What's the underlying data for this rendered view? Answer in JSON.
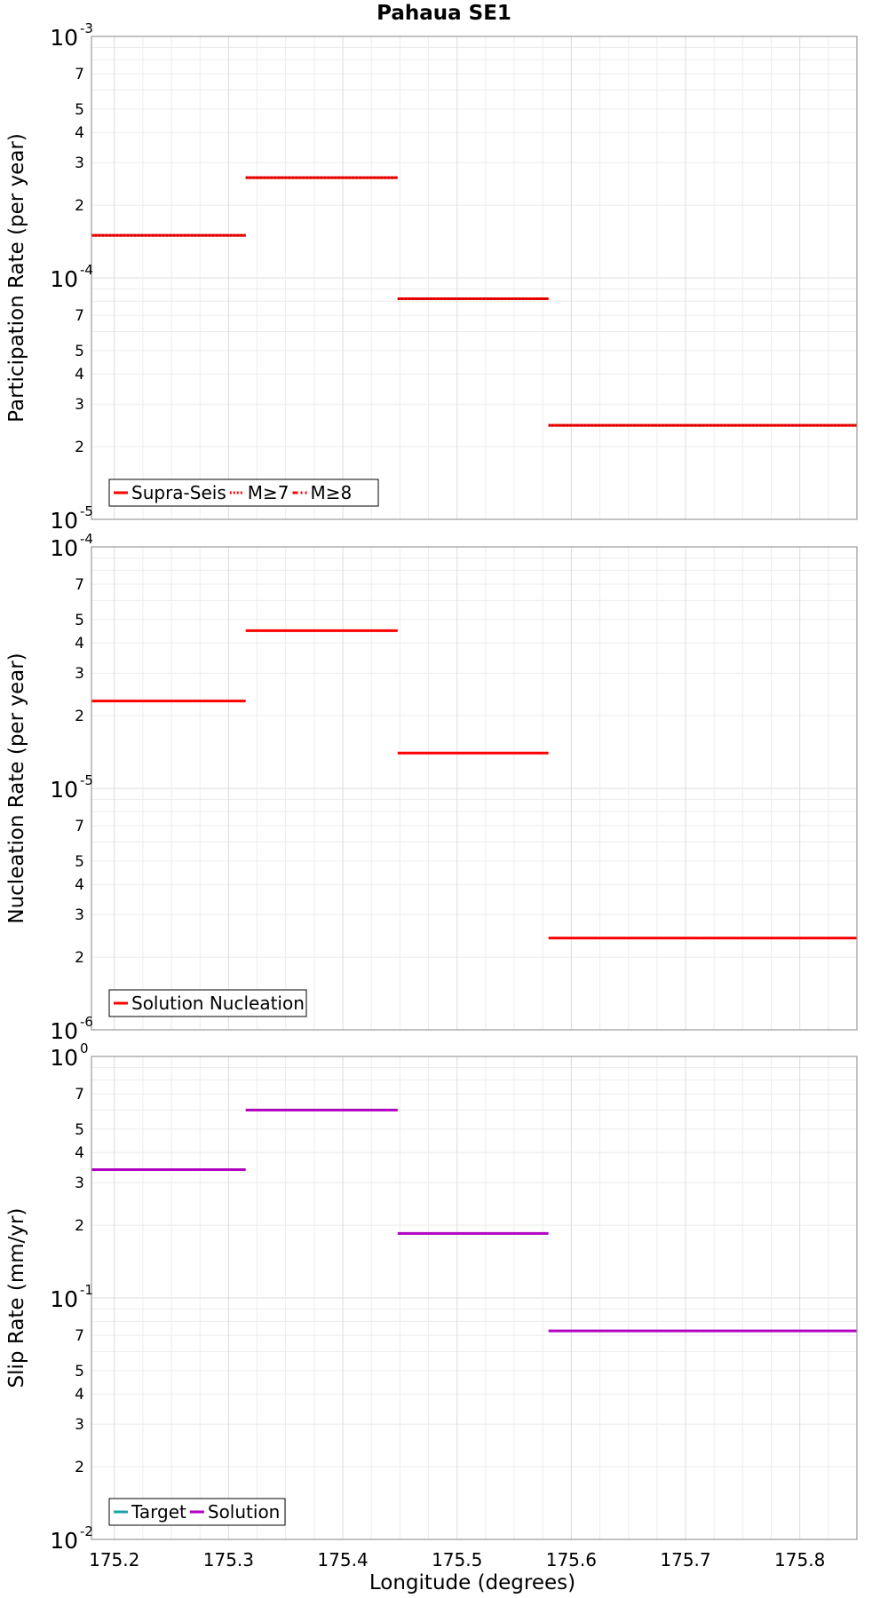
{
  "chart_data": [
    {
      "type": "line",
      "title": "Pahaua SE1",
      "xlabel": "",
      "ylabel": "Participation Rate (per year)",
      "xlim": [
        175.18,
        175.85
      ],
      "ylim": [
        1e-05,
        0.001
      ],
      "yscale": "log",
      "grid": true,
      "legend_position": "bottom-left",
      "major_tick_labels": [
        {
          "base": "10",
          "exp": "-5"
        },
        {
          "base": "10",
          "exp": "-4"
        },
        {
          "base": "10",
          "exp": "-3"
        }
      ],
      "minor_tick_labels": [
        "2",
        "3",
        "4",
        "5",
        "7"
      ],
      "legend": [
        {
          "label": "Supra-Seis",
          "color": "#ff0000",
          "style": "solid"
        },
        {
          "label": "M≥7",
          "color": "#ff0000",
          "style": "dotted"
        },
        {
          "label": "M≥8",
          "color": "#ff0000",
          "style": "dashdot"
        }
      ],
      "segments": [
        {
          "x": [
            175.18,
            175.315
          ],
          "y": 0.00015
        },
        {
          "x": [
            175.315,
            175.448
          ],
          "y": 0.00026
        },
        {
          "x": [
            175.448,
            175.58
          ],
          "y": 8.2e-05
        },
        {
          "x": [
            175.58,
            175.712
          ],
          "y": 2.45e-05
        },
        {
          "x": [
            175.712,
            175.85
          ],
          "y": 2.45e-05
        }
      ]
    },
    {
      "type": "line",
      "title": "",
      "xlabel": "",
      "ylabel": "Nucleation Rate (per year)",
      "xlim": [
        175.18,
        175.85
      ],
      "ylim": [
        1e-06,
        0.0001
      ],
      "yscale": "log",
      "grid": true,
      "legend_position": "bottom-left",
      "major_tick_labels": [
        {
          "base": "10",
          "exp": "-6"
        },
        {
          "base": "10",
          "exp": "-5"
        },
        {
          "base": "10",
          "exp": "-4"
        }
      ],
      "minor_tick_labels": [
        "2",
        "3",
        "4",
        "5",
        "7"
      ],
      "legend": [
        {
          "label": "Solution Nucleation",
          "color": "#ff0000",
          "style": "solid"
        }
      ],
      "segments": [
        {
          "x": [
            175.18,
            175.315
          ],
          "y": 2.3e-05
        },
        {
          "x": [
            175.315,
            175.448
          ],
          "y": 4.5e-05
        },
        {
          "x": [
            175.448,
            175.58
          ],
          "y": 1.4e-05
        },
        {
          "x": [
            175.58,
            175.712
          ],
          "y": 2.4e-06
        },
        {
          "x": [
            175.712,
            175.85
          ],
          "y": 2.4e-06
        }
      ]
    },
    {
      "type": "line",
      "title": "",
      "xlabel": "Longitude (degrees)",
      "ylabel": "Slip Rate (mm/yr)",
      "xlim": [
        175.18,
        175.85
      ],
      "ylim": [
        0.01,
        1
      ],
      "yscale": "log",
      "grid": true,
      "legend_position": "bottom-left",
      "major_tick_labels": [
        {
          "base": "10",
          "exp": "-2"
        },
        {
          "base": "10",
          "exp": "-1"
        },
        {
          "base": "10",
          "exp": "0"
        }
      ],
      "minor_tick_labels": [
        "2",
        "3",
        "4",
        "5",
        "7"
      ],
      "x_tick_labels": [
        "175.2",
        "175.3",
        "175.4",
        "175.5",
        "175.6",
        "175.7",
        "175.8"
      ],
      "legend": [
        {
          "label": "Target",
          "color": "#1aa6a6",
          "style": "solid"
        },
        {
          "label": "Solution",
          "color": "#b000c0",
          "style": "solid"
        }
      ],
      "segments": [
        {
          "x": [
            175.18,
            175.315
          ],
          "y": 0.34
        },
        {
          "x": [
            175.315,
            175.448
          ],
          "y": 0.6
        },
        {
          "x": [
            175.448,
            175.58
          ],
          "y": 0.185
        },
        {
          "x": [
            175.58,
            175.712
          ],
          "y": 0.073
        },
        {
          "x": [
            175.712,
            175.85
          ],
          "y": 0.073
        }
      ]
    }
  ]
}
